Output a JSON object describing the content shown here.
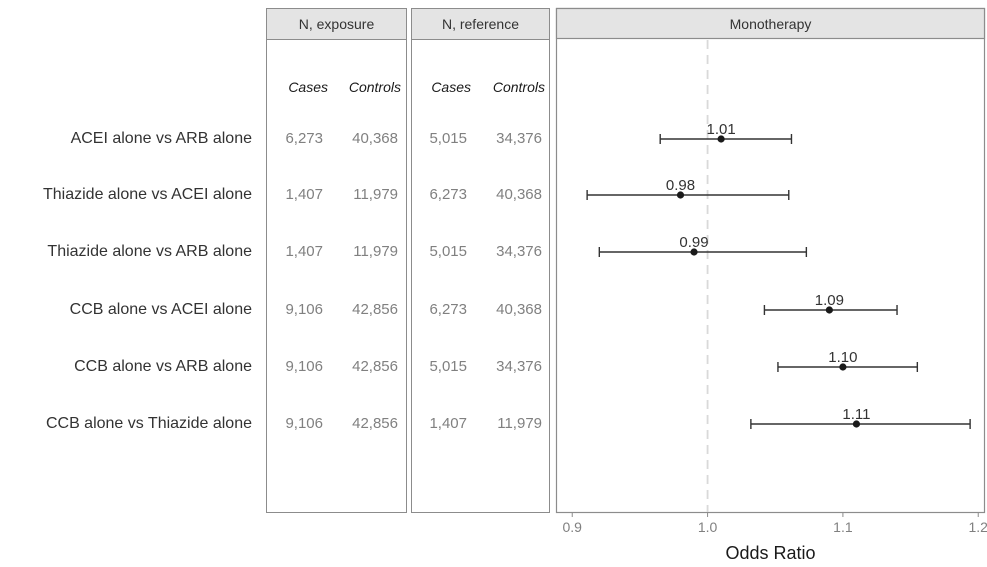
{
  "panels": {
    "exposure_title": "N, exposure",
    "reference_title": "N, reference",
    "plot_title": "Monotherapy"
  },
  "subheaders": {
    "cases": "Cases",
    "controls": "Controls"
  },
  "rows": [
    {
      "label": "ACEI alone vs ARB alone",
      "exp_cases": "6,273",
      "exp_controls": "40,368",
      "ref_cases": "5,015",
      "ref_controls": "34,376"
    },
    {
      "label": "Thiazide alone vs ACEI alone",
      "exp_cases": "1,407",
      "exp_controls": "11,979",
      "ref_cases": "6,273",
      "ref_controls": "40,368"
    },
    {
      "label": "Thiazide alone vs ARB alone",
      "exp_cases": "1,407",
      "exp_controls": "11,979",
      "ref_cases": "5,015",
      "ref_controls": "34,376"
    },
    {
      "label": "CCB alone vs ACEI alone",
      "exp_cases": "9,106",
      "exp_controls": "42,856",
      "ref_cases": "6,273",
      "ref_controls": "40,368"
    },
    {
      "label": "CCB alone vs ARB alone",
      "exp_cases": "9,106",
      "exp_controls": "42,856",
      "ref_cases": "5,015",
      "ref_controls": "34,376"
    },
    {
      "label": "CCB alone vs Thiazide alone",
      "exp_cases": "9,106",
      "exp_controls": "42,856",
      "ref_cases": "1,407",
      "ref_controls": "11,979"
    }
  ],
  "chart_data": {
    "type": "forest",
    "title": "Monotherapy",
    "xlabel": "Odds Ratio",
    "xlim": [
      0.888,
      1.205
    ],
    "xticks": [
      0.9,
      1.0,
      1.1,
      1.2
    ],
    "xtick_labels": [
      "0.9",
      "1.0",
      "1.1",
      "1.2"
    ],
    "reference_line": 1.0,
    "categories": [
      "ACEI alone vs ARB alone",
      "Thiazide alone vs ACEI alone",
      "Thiazide alone vs ARB alone",
      "CCB alone vs ACEI alone",
      "CCB alone vs ARB alone",
      "CCB alone vs Thiazide alone"
    ],
    "estimates": [
      1.01,
      0.98,
      0.99,
      1.09,
      1.1,
      1.11
    ],
    "estimate_labels": [
      "1.01",
      "0.98",
      "0.99",
      "1.09",
      "1.10",
      "1.11"
    ],
    "ci_lower": [
      0.965,
      0.911,
      0.92,
      1.042,
      1.052,
      1.032
    ],
    "ci_upper": [
      1.062,
      1.06,
      1.073,
      1.14,
      1.155,
      1.194
    ],
    "grid": false
  }
}
